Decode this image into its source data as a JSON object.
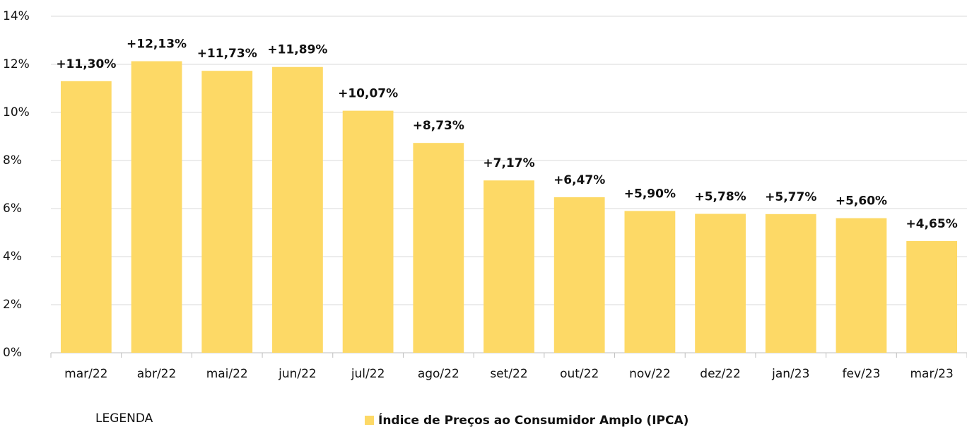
{
  "chart_data": {
    "type": "bar",
    "categories": [
      "mar/22",
      "abr/22",
      "mai/22",
      "jun/22",
      "jul/22",
      "ago/22",
      "set/22",
      "out/22",
      "nov/22",
      "dez/22",
      "jan/23",
      "fev/23",
      "mar/23"
    ],
    "series": [
      {
        "name": "Índice de Preços ao Consumidor Amplo (IPCA)",
        "color": "#fdd966",
        "values": [
          11.3,
          12.13,
          11.73,
          11.89,
          10.07,
          8.73,
          7.17,
          6.47,
          5.9,
          5.78,
          5.77,
          5.6,
          4.65
        ],
        "value_labels": [
          "+11,30%",
          "+12,13%",
          "+11,73%",
          "+11,89%",
          "+10,07%",
          "+8,73%",
          "+7,17%",
          "+6,47%",
          "+5,90%",
          "+5,78%",
          "+5,77%",
          "+5,60%",
          "+4,65%"
        ]
      }
    ],
    "ylim": [
      0,
      14
    ],
    "yticks": [
      {
        "value": 0,
        "label": "0%"
      },
      {
        "value": 2,
        "label": "2%"
      },
      {
        "value": 4,
        "label": "4%"
      },
      {
        "value": 6,
        "label": "6%"
      },
      {
        "value": 8,
        "label": "8%"
      },
      {
        "value": 10,
        "label": "10%"
      },
      {
        "value": 12,
        "label": "12%"
      },
      {
        "value": 14,
        "label": "14%"
      }
    ],
    "grid": true,
    "legend_title": "LEGENDA"
  }
}
